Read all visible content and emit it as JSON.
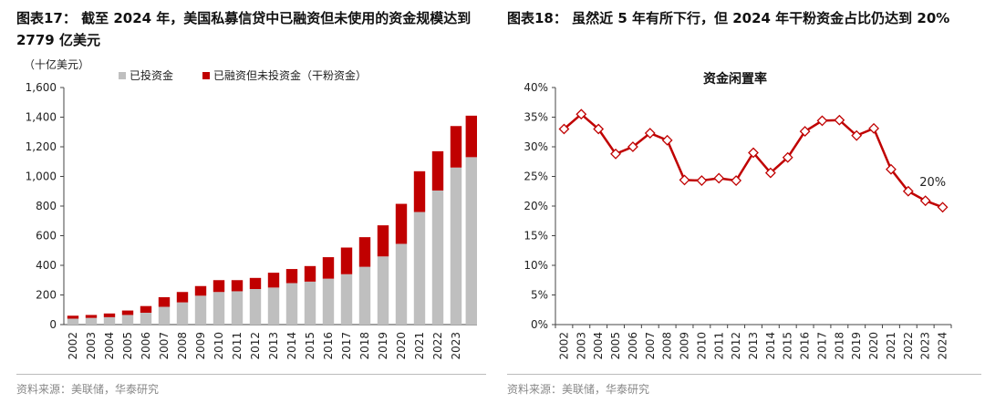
{
  "left": {
    "title": "图表17：  截至 2024 年，美国私募信贷中已融资但未使用的资金规模达到 2779 亿美元",
    "unit": "（十亿美元）",
    "source": "资料来源：美联储，华泰研究"
  },
  "right": {
    "title": "图表18：  虽然近 5 年有所下行，但 2024 年干粉资金占比仍达到 20%",
    "source": "资料来源：美联储，华泰研究"
  },
  "colors": {
    "invested": "#bfbfbf",
    "dry_powder": "#c00000",
    "line": "#c00000"
  },
  "chart_data": [
    {
      "type": "bar",
      "stacked": true,
      "title": "",
      "xlabel": "",
      "ylabel": "（十亿美元）",
      "ylim": [
        0,
        1600
      ],
      "yticks": [
        0,
        200,
        400,
        600,
        800,
        1000,
        1200,
        1400,
        1600
      ],
      "ytick_labels": [
        "0",
        "200",
        "400",
        "600",
        "800",
        "1,000",
        "1,200",
        "1,400",
        "1,600"
      ],
      "categories": [
        "2002",
        "2003",
        "2004",
        "2005",
        "2006",
        "2007",
        "2008",
        "2009",
        "2010",
        "2011",
        "2012",
        "2013",
        "2014",
        "2015",
        "2016",
        "2017",
        "2018",
        "2019",
        "2020",
        "2021",
        "2022",
        "2023",
        ""
      ],
      "legend_position": "top",
      "grid": false,
      "series": [
        {
          "name": "已投资金",
          "color": "#bfbfbf",
          "values": [
            40,
            45,
            50,
            65,
            80,
            120,
            150,
            195,
            220,
            225,
            240,
            250,
            280,
            290,
            310,
            340,
            390,
            460,
            545,
            760,
            905,
            1060,
            1130
          ]
        },
        {
          "name": "已融资但未投资金（干粉资金）",
          "color": "#c00000",
          "values": [
            20,
            20,
            25,
            30,
            45,
            65,
            70,
            65,
            80,
            75,
            75,
            100,
            95,
            105,
            145,
            180,
            200,
            210,
            270,
            275,
            265,
            280,
            280
          ]
        }
      ]
    },
    {
      "type": "line",
      "title": "资金闲置率",
      "xlabel": "",
      "ylabel": "",
      "ylim": [
        0,
        40
      ],
      "yticks": [
        0,
        5,
        10,
        15,
        20,
        25,
        30,
        35,
        40
      ],
      "ytick_labels": [
        "0%",
        "5%",
        "10%",
        "15%",
        "20%",
        "25%",
        "30%",
        "35%",
        "40%"
      ],
      "x": [
        "2002",
        "2003",
        "2004",
        "2005",
        "2006",
        "2007",
        "2008",
        "2009",
        "2010",
        "2011",
        "2012",
        "2013",
        "2014",
        "2015",
        "2016",
        "2017",
        "2018",
        "2019",
        "2020",
        "2021",
        "2022",
        "2023",
        "2024"
      ],
      "grid": false,
      "series": [
        {
          "name": "",
          "color": "#c00000",
          "values": [
            33,
            35.5,
            33,
            28.8,
            30,
            32.3,
            31.1,
            24.4,
            24.3,
            24.7,
            24.3,
            29,
            25.6,
            28.2,
            32.6,
            34.4,
            34.5,
            31.9,
            33.1,
            26.2,
            22.5,
            20.9,
            19.8
          ]
        }
      ],
      "annotations": [
        {
          "x": "2023",
          "text": "20%"
        }
      ]
    }
  ]
}
